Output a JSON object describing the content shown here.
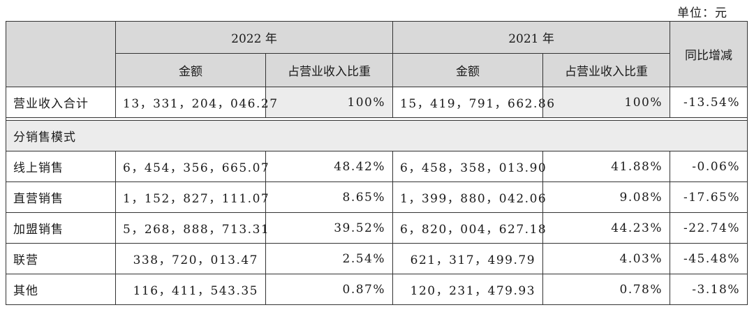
{
  "unit_label": "单位：元",
  "header": {
    "year_2022": "2022 年",
    "year_2021": "2021 年",
    "amount": "金额",
    "share": "占营业收入比重",
    "yoy": "同比增减"
  },
  "total": {
    "label": "营业收入合计",
    "amount_2022": "13，331，204，046.27",
    "share_2022": "100%",
    "amount_2021": "15，419，791，662.86",
    "share_2021": "100%",
    "yoy": "-13.54%"
  },
  "section_label": "分销售模式",
  "rows": [
    {
      "label": "线上销售",
      "amount_2022": "6，454，356，665.07",
      "share_2022": "48.42%",
      "amount_2021": "6，458，358，013.90",
      "share_2021": "41.88%",
      "yoy": "-0.06%"
    },
    {
      "label": "直营销售",
      "amount_2022": "1，152，827，111.07",
      "share_2022": "8.65%",
      "amount_2021": "1，399，880，042.06",
      "share_2021": "9.08%",
      "yoy": "-17.65%"
    },
    {
      "label": "加盟销售",
      "amount_2022": "5，268，888，713.31",
      "share_2022": "39.52%",
      "amount_2021": "6，820，004，627.18",
      "share_2021": "44.23%",
      "yoy": "-22.74%"
    },
    {
      "label": "联营",
      "amount_2022": "338，720，013.47",
      "share_2022": "2.54%",
      "amount_2021": "621，317，499.79",
      "share_2021": "4.03%",
      "yoy": "-45.48%"
    },
    {
      "label": "其他",
      "amount_2022": "116，411，543.35",
      "share_2022": "0.87%",
      "amount_2021": "120，231，479.93",
      "share_2021": "0.78%",
      "yoy": "-3.18%"
    }
  ]
}
